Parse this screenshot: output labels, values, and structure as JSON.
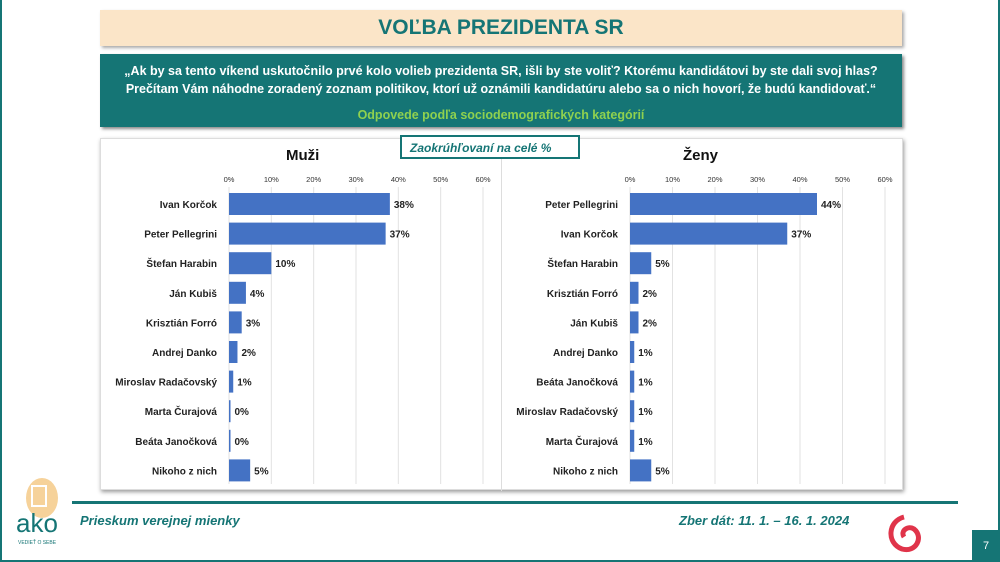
{
  "header": {
    "title": "VOĽBA PREZIDENTA SR"
  },
  "question": {
    "line1": "„Ak by sa tento víkend uskutočnilo prvé kolo volieb prezidenta SR, išli by ste voliť? Ktorému kandidátovi by ste dali svoj hlas?",
    "line2": "Prečítam Vám náhodne zoradený zoznam politikov, ktorí už oznámili kandidatúru alebo sa o nich hovorí, že budú kandidovať.“",
    "subtitle": "Odpovede podľa sociodemografických kategórií"
  },
  "note": "Zaokrúhľovaní na celé %",
  "colors": {
    "bar": "#4472c4",
    "accent": "#157575"
  },
  "chart_data": [
    {
      "type": "bar",
      "orientation": "horizontal",
      "title": "Muži",
      "xlim": [
        0,
        60
      ],
      "ticks": [
        "0%",
        "10%",
        "20%",
        "30%",
        "40%",
        "50%",
        "60%"
      ],
      "grid": true,
      "categories": [
        "Ivan Korčok",
        "Peter Pellegrini",
        "Štefan Harabin",
        "Ján Kubiš",
        "Krisztián Forró",
        "Andrej Danko",
        "Miroslav Radačovský",
        "Marta Čurajová",
        "Beáta Janočková",
        "Nikoho z nich"
      ],
      "values": [
        38,
        37,
        10,
        4,
        3,
        2,
        1,
        0,
        0,
        5
      ]
    },
    {
      "type": "bar",
      "orientation": "horizontal",
      "title": "Ženy",
      "xlim": [
        0,
        60
      ],
      "ticks": [
        "0%",
        "10%",
        "20%",
        "30%",
        "40%",
        "50%",
        "60%"
      ],
      "grid": true,
      "categories": [
        "Peter Pellegrini",
        "Ivan Korčok",
        "Štefan Harabin",
        "Krisztián Forró",
        "Ján Kubiš",
        "Andrej Danko",
        "Beáta Janočková",
        "Miroslav Radačovský",
        "Marta Čurajová",
        "Nikoho z nich"
      ],
      "values": [
        44,
        37,
        5,
        2,
        2,
        1,
        1,
        1,
        1,
        5
      ]
    }
  ],
  "footer": {
    "left": "Prieskum verejnej mienky",
    "right": "Zber dát: 11. 1. – 16. 1. 2024",
    "page": "7",
    "logo_text": "ako",
    "logo_tagline": "VEDIEŤ O SEBE"
  }
}
